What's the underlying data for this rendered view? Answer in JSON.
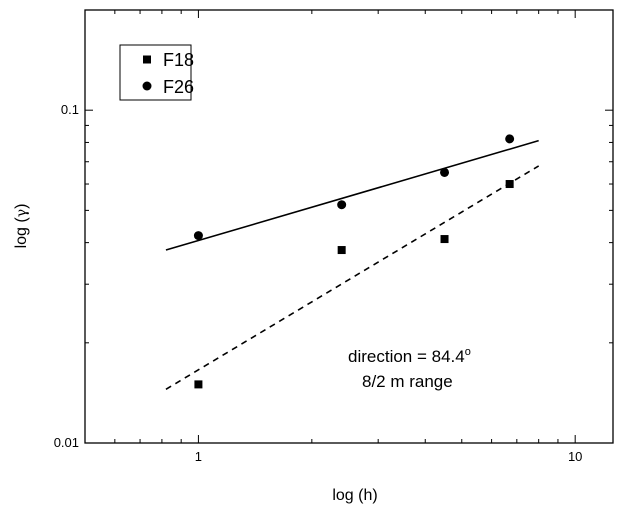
{
  "chart_data": {
    "type": "scatter",
    "xlabel": "log (h)",
    "ylabel_prefix": "log (",
    "ylabel_symbol": "γ",
    "ylabel_suffix": ")",
    "x_scale": "log",
    "y_scale": "log",
    "xlim": [
      0.5,
      12.6
    ],
    "ylim": [
      0.01,
      0.2
    ],
    "x_major_ticks": [
      1,
      10
    ],
    "x_major_labels": [
      "1",
      "10"
    ],
    "y_major_ticks": [
      0.01,
      0.1
    ],
    "y_major_labels": [
      "0.01",
      "0.1"
    ],
    "grid": false,
    "legend_position": "top-left",
    "series": [
      {
        "name": "F18",
        "marker": "square",
        "x": [
          1.0,
          2.4,
          4.5,
          6.7
        ],
        "y": [
          0.015,
          0.038,
          0.041,
          0.06
        ],
        "fit": {
          "style": "dashed",
          "x": [
            0.82,
            8.0
          ],
          "y": [
            0.0145,
            0.068
          ]
        }
      },
      {
        "name": "F26",
        "marker": "circle",
        "x": [
          1.0,
          2.4,
          4.5,
          6.7
        ],
        "y": [
          0.042,
          0.052,
          0.065,
          0.082
        ],
        "fit": {
          "style": "solid",
          "x": [
            0.82,
            8.0
          ],
          "y": [
            0.038,
            0.081
          ]
        }
      }
    ],
    "annotation": {
      "line1_prefix": "direction = 84.4",
      "line1_degree": "o",
      "line2": "8/2 m range"
    }
  }
}
